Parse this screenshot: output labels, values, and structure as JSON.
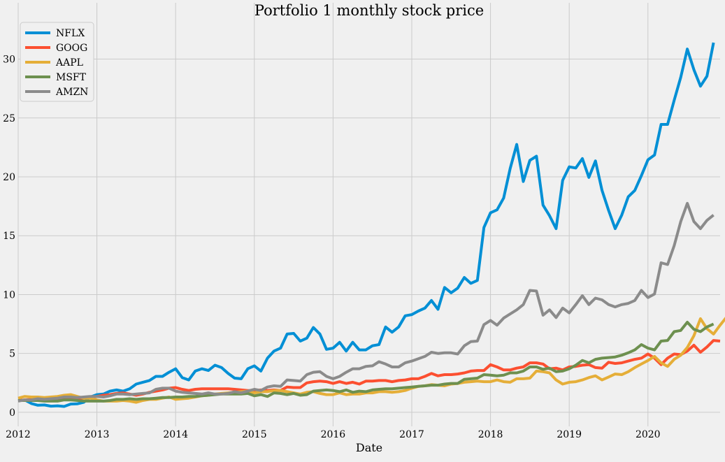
{
  "chart_data": {
    "type": "line",
    "title": "Portfolio 1 monthly stock price",
    "xlabel": "Date",
    "ylabel": "",
    "grid": true,
    "legend_position": "top-left",
    "x_start": "2012-01",
    "x_end": "2020-12",
    "xlim": [
      "2012-01",
      "2020-12"
    ],
    "ylim": [
      -0.6,
      33
    ],
    "x_ticks": [
      "2012",
      "2013",
      "2014",
      "2015",
      "2016",
      "2017",
      "2018",
      "2019",
      "2020"
    ],
    "y_ticks": [
      "0",
      "5",
      "10",
      "15",
      "20",
      "25",
      "30"
    ],
    "y_tick_values": [
      0,
      5,
      10,
      15,
      20,
      25,
      30
    ],
    "series": [
      {
        "name": "NFLX",
        "color": "#008fd5",
        "values": [
          1.0,
          1.05,
          0.75,
          0.6,
          0.62,
          0.52,
          0.55,
          0.5,
          0.7,
          0.72,
          0.85,
          1.3,
          1.5,
          1.55,
          1.8,
          1.9,
          1.8,
          2.0,
          2.4,
          2.55,
          2.7,
          3.05,
          3.05,
          3.4,
          3.7,
          2.95,
          2.75,
          3.5,
          3.7,
          3.55,
          4.0,
          3.8,
          3.3,
          2.9,
          2.85,
          3.7,
          3.95,
          3.5,
          4.6,
          5.2,
          5.45,
          6.65,
          6.7,
          6.05,
          6.3,
          7.2,
          6.65,
          5.35,
          5.45,
          5.95,
          5.2,
          5.95,
          5.3,
          5.3,
          5.65,
          5.75,
          7.25,
          6.8,
          7.25,
          8.2,
          8.3,
          8.6,
          8.85,
          9.5,
          8.75,
          10.6,
          10.15,
          10.55,
          11.45,
          10.95,
          11.2,
          15.7,
          16.95,
          17.2,
          18.2,
          20.7,
          22.75,
          19.6,
          21.4,
          21.75,
          17.6,
          16.7,
          15.6,
          19.7,
          20.85,
          20.75,
          21.55,
          19.95,
          21.35,
          18.85,
          17.15,
          15.6,
          16.75,
          18.3,
          18.85,
          20.1,
          21.45,
          21.85,
          24.45,
          24.45,
          26.5,
          28.45,
          30.85,
          29.1,
          27.7,
          28.55,
          31.4
        ]
      },
      {
        "name": "GOOG",
        "color": "#fc4f30",
        "values": [
          1.0,
          1.05,
          1.1,
          1.05,
          1.05,
          1.1,
          1.15,
          1.2,
          1.25,
          1.15,
          1.2,
          1.25,
          1.35,
          1.45,
          1.5,
          1.6,
          1.65,
          1.55,
          1.45,
          1.55,
          1.7,
          1.8,
          1.9,
          2.05,
          2.1,
          1.95,
          1.85,
          1.95,
          2.0,
          2.0,
          2.0,
          2.0,
          2.0,
          1.95,
          1.9,
          1.85,
          1.85,
          1.9,
          1.85,
          1.9,
          1.85,
          2.15,
          2.1,
          2.1,
          2.5,
          2.6,
          2.65,
          2.6,
          2.45,
          2.6,
          2.45,
          2.55,
          2.4,
          2.65,
          2.65,
          2.7,
          2.7,
          2.6,
          2.7,
          2.75,
          2.85,
          2.85,
          3.05,
          3.3,
          3.1,
          3.2,
          3.2,
          3.25,
          3.35,
          3.5,
          3.55,
          3.55,
          4.05,
          3.85,
          3.6,
          3.6,
          3.75,
          3.85,
          4.2,
          4.2,
          4.1,
          3.7,
          3.75,
          3.6,
          3.85,
          3.9,
          4.0,
          4.05,
          3.8,
          3.75,
          4.25,
          4.15,
          4.2,
          4.35,
          4.5,
          4.6,
          4.95,
          4.6,
          4.05,
          4.6,
          4.95,
          4.9,
          5.2,
          5.7,
          5.1,
          5.55,
          6.1,
          6.05
        ]
      },
      {
        "name": "AAPL",
        "color": "#e5ae38",
        "values": [
          1.2,
          1.35,
          1.3,
          1.3,
          1.25,
          1.3,
          1.35,
          1.45,
          1.5,
          1.35,
          1.2,
          1.2,
          1.05,
          0.95,
          0.95,
          0.95,
          1.0,
          0.95,
          0.85,
          1.0,
          1.1,
          1.1,
          1.2,
          1.3,
          1.1,
          1.15,
          1.2,
          1.3,
          1.4,
          1.45,
          1.55,
          1.6,
          1.65,
          1.7,
          1.75,
          1.8,
          1.65,
          1.75,
          1.75,
          1.85,
          1.85,
          1.75,
          1.65,
          1.55,
          1.7,
          1.75,
          1.6,
          1.5,
          1.5,
          1.65,
          1.5,
          1.55,
          1.55,
          1.65,
          1.65,
          1.75,
          1.75,
          1.7,
          1.75,
          1.85,
          2.05,
          2.2,
          2.25,
          2.35,
          2.3,
          2.25,
          2.4,
          2.45,
          2.55,
          2.6,
          2.65,
          2.6,
          2.6,
          2.75,
          2.6,
          2.55,
          2.85,
          2.85,
          2.9,
          3.5,
          3.45,
          3.35,
          2.75,
          2.4,
          2.55,
          2.6,
          2.75,
          2.95,
          3.1,
          2.75,
          3.0,
          3.25,
          3.2,
          3.45,
          3.8,
          4.1,
          4.4,
          4.75,
          4.2,
          3.9,
          4.5,
          4.85,
          5.5,
          6.5,
          7.95,
          7.1,
          6.65,
          7.4,
          8.1
        ]
      },
      {
        "name": "MSFT",
        "color": "#6d904f",
        "values": [
          1.0,
          1.0,
          1.0,
          1.0,
          0.95,
          0.95,
          0.95,
          1.05,
          1.05,
          1.0,
          0.95,
          0.95,
          0.95,
          0.95,
          1.0,
          1.1,
          1.1,
          1.15,
          1.1,
          1.15,
          1.15,
          1.2,
          1.25,
          1.25,
          1.3,
          1.3,
          1.35,
          1.35,
          1.4,
          1.45,
          1.5,
          1.55,
          1.55,
          1.55,
          1.55,
          1.6,
          1.4,
          1.5,
          1.35,
          1.65,
          1.6,
          1.5,
          1.6,
          1.45,
          1.5,
          1.8,
          1.85,
          1.9,
          1.85,
          1.75,
          1.9,
          1.7,
          1.8,
          1.75,
          1.9,
          1.95,
          2.0,
          2.0,
          2.05,
          2.1,
          2.15,
          2.2,
          2.25,
          2.3,
          2.3,
          2.4,
          2.45,
          2.45,
          2.8,
          2.85,
          2.9,
          3.2,
          3.15,
          3.1,
          3.15,
          3.35,
          3.35,
          3.5,
          3.85,
          3.85,
          3.65,
          3.75,
          3.45,
          3.5,
          3.7,
          4.0,
          4.4,
          4.2,
          4.5,
          4.6,
          4.65,
          4.7,
          4.85,
          5.05,
          5.3,
          5.75,
          5.45,
          5.3,
          6.05,
          6.1,
          6.85,
          6.95,
          7.65,
          7.05,
          6.85,
          7.25,
          7.5
        ]
      },
      {
        "name": "AMZN",
        "color": "#8b8b8b",
        "values": [
          0.95,
          1.05,
          1.05,
          1.15,
          1.1,
          1.15,
          1.2,
          1.3,
          1.3,
          1.25,
          1.3,
          1.35,
          1.35,
          1.3,
          1.4,
          1.55,
          1.55,
          1.5,
          1.55,
          1.6,
          1.65,
          1.95,
          2.05,
          2.05,
          1.8,
          1.7,
          1.65,
          1.6,
          1.55,
          1.65,
          1.55,
          1.55,
          1.6,
          1.75,
          1.65,
          1.8,
          1.95,
          1.85,
          2.15,
          2.25,
          2.2,
          2.75,
          2.7,
          2.65,
          3.2,
          3.4,
          3.45,
          3.05,
          2.85,
          3.05,
          3.4,
          3.7,
          3.7,
          3.9,
          3.95,
          4.3,
          4.1,
          3.85,
          3.85,
          4.2,
          4.35,
          4.55,
          4.75,
          5.1,
          5.0,
          5.05,
          5.05,
          4.95,
          5.65,
          6.0,
          6.05,
          7.45,
          7.8,
          7.4,
          8.0,
          8.35,
          8.7,
          9.15,
          10.35,
          10.3,
          8.25,
          8.7,
          8.05,
          8.85,
          8.45,
          9.15,
          9.9,
          9.15,
          9.7,
          9.55,
          9.15,
          8.95,
          9.15,
          9.25,
          9.5,
          10.35,
          9.75,
          10.05,
          12.7,
          12.55,
          14.15,
          16.2,
          17.75,
          16.2,
          15.6,
          16.3,
          16.75
        ]
      }
    ]
  }
}
